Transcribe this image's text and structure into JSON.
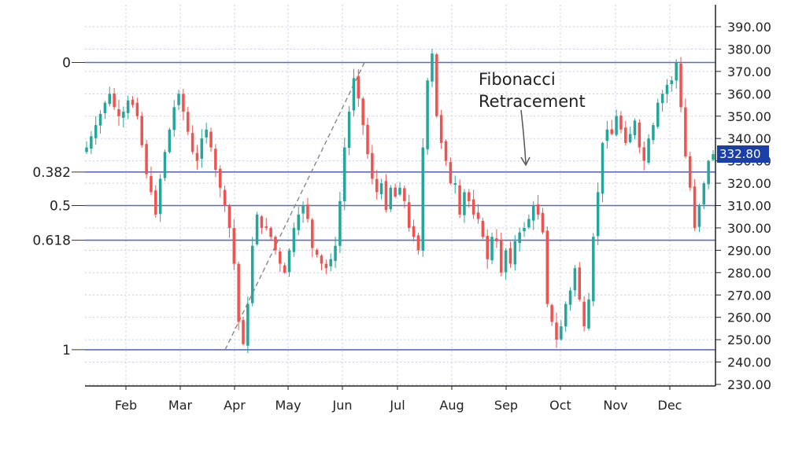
{
  "chart_data": {
    "type": "candlestick",
    "months": [
      "Feb",
      "Mar",
      "Apr",
      "May",
      "Jun",
      "Jul",
      "Aug",
      "Sep",
      "Oct",
      "Nov",
      "Dec"
    ],
    "ylim": [
      230,
      395
    ],
    "yticks": [
      "230.00",
      "240.00",
      "250.00",
      "260.00",
      "270.00",
      "280.00",
      "290.00",
      "300.00",
      "310.00",
      "320.00",
      "330.00",
      "340.00",
      "350.00",
      "360.00",
      "370.00",
      "380.00",
      "390.00"
    ],
    "fib_levels": [
      {
        "label": "0",
        "value": 374
      },
      {
        "label": "0.382",
        "value": 325
      },
      {
        "label": "0.5",
        "value": 310
      },
      {
        "label": "0.618",
        "value": 294.5
      },
      {
        "label": "1",
        "value": 245.5
      }
    ],
    "annotation": [
      "Fibonacci",
      "Retracement"
    ],
    "last_price": "332.80",
    "colors": {
      "up": "#26a69a",
      "down": "#ef5350",
      "fib_line": "#5c6bc0",
      "price_tag": "#1a3fa8",
      "grid": "#c9cce8"
    },
    "closes": [
      336,
      341,
      346,
      351,
      356,
      360,
      354,
      350,
      352,
      357,
      355,
      350,
      337,
      324,
      316,
      306,
      322,
      334,
      344,
      354,
      360,
      352,
      343,
      334,
      330,
      340,
      344,
      336,
      326,
      318,
      310,
      300,
      284,
      258,
      248,
      266,
      292,
      306,
      300,
      300,
      296,
      290,
      284,
      280,
      290,
      300,
      306,
      310,
      304,
      291,
      288,
      284,
      282,
      286,
      292,
      312,
      336,
      352,
      367,
      358,
      346,
      333,
      322,
      316,
      320,
      308,
      318,
      314,
      318,
      312,
      300,
      296,
      290,
      336,
      366,
      378,
      350,
      338,
      330,
      320,
      320,
      306,
      316,
      312,
      306,
      304,
      296,
      286,
      296,
      294,
      280,
      290,
      284,
      294,
      298,
      300,
      304,
      310,
      306,
      298,
      266,
      258,
      250,
      256,
      266,
      272,
      282,
      268,
      256,
      268,
      296,
      316,
      338,
      344,
      342,
      350,
      344,
      338,
      342,
      348,
      336,
      330,
      340,
      346,
      356,
      360,
      364,
      366,
      374,
      354,
      332,
      318,
      300,
      310,
      320,
      330,
      333
    ]
  }
}
